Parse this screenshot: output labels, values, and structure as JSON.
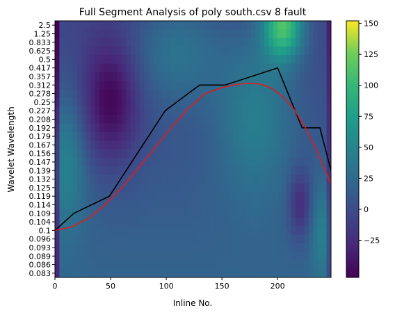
{
  "chart_data": {
    "type": "heatmap",
    "title": "Full Segment Analysis of poly south.csv 8 fault",
    "xlabel": "Inline No.",
    "ylabel": "Wavelet Wavelength",
    "xlim": [
      0,
      248
    ],
    "x_ticks": [
      0,
      50,
      100,
      150,
      200
    ],
    "y_tick_labels": [
      "2.5",
      "1.25",
      "0.833",
      "0.625",
      "0.5",
      "0.417",
      "0.357",
      "0.312",
      "0.278",
      "0.25",
      "0.227",
      "0.208",
      "0.192",
      "0.179",
      "0.167",
      "0.156",
      "0.147",
      "0.139",
      "0.132",
      "0.125",
      "0.119",
      "0.114",
      "0.109",
      "0.104",
      "0.1",
      "0.096",
      "0.093",
      "0.089",
      "0.086",
      "0.083"
    ],
    "colorbar": {
      "colormap": "viridis",
      "range": [
        -55,
        152
      ],
      "ticks": [
        -25,
        0,
        25,
        50,
        75,
        100,
        125,
        150
      ]
    },
    "series": [
      {
        "color": "#000000",
        "type": "line",
        "x": [
          0,
          17,
          49,
          99,
          130,
          153,
          200,
          222,
          238,
          248
        ],
        "y": [
          "0.1",
          "0.109",
          "0.119",
          "0.227",
          "0.312",
          "0.312",
          "0.417",
          "0.192",
          "0.192",
          "0.139"
        ]
      },
      {
        "color": "#e41a1c",
        "type": "line",
        "x": [
          0,
          15,
          30,
          45,
          60,
          75,
          90,
          105,
          120,
          135,
          150,
          165,
          175,
          185,
          195,
          205,
          215,
          225,
          235,
          248
        ],
        "y_index": [
          24.0,
          23.6,
          22.6,
          21.0,
          19.0,
          16.7,
          14.3,
          11.9,
          9.7,
          8.0,
          7.3,
          6.9,
          6.8,
          6.9,
          7.4,
          8.4,
          9.9,
          12.0,
          14.6,
          18.6
        ]
      }
    ]
  }
}
